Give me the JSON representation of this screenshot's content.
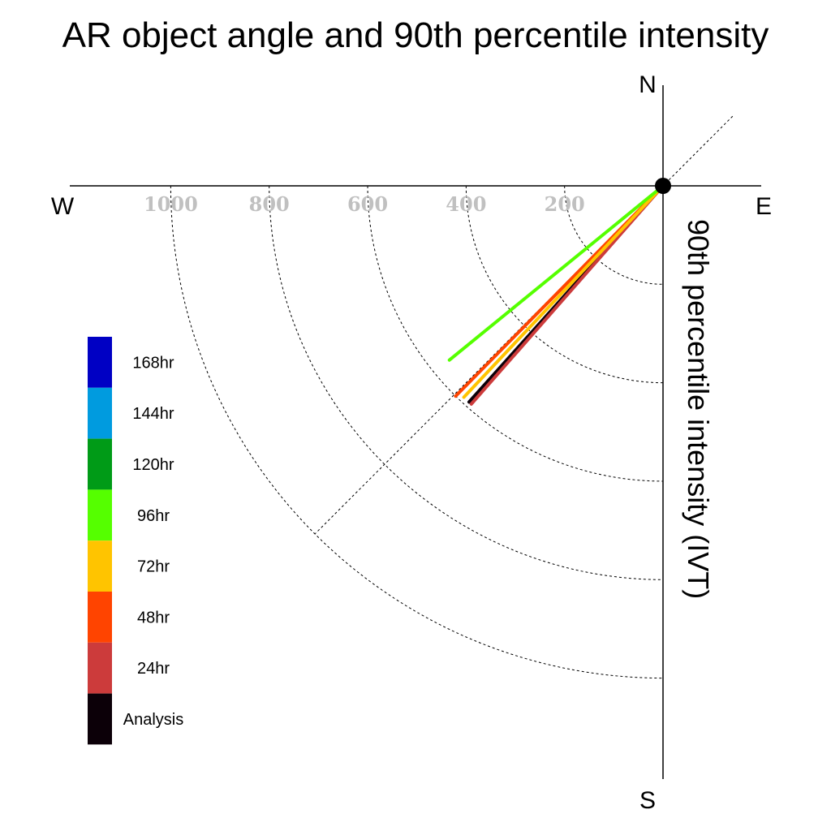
{
  "chart_data": {
    "type": "polar-line",
    "title": "AR object angle and 90th percentile intensity",
    "radial_axis_label": "90th percentile intensity (IVT)",
    "radial_ticks": [
      200,
      400,
      600,
      800,
      1000
    ],
    "radial_max": 1200,
    "compass": {
      "north": "N",
      "south": "S",
      "east": "E",
      "west": "W"
    },
    "reference_angle_deg": 225,
    "series": [
      {
        "name": "Analysis",
        "color": "#0c0008",
        "angle_deg": 221.9,
        "intensity": 590
      },
      {
        "name": "24hr",
        "color": "#cc3b3b",
        "angle_deg": 221.3,
        "intensity": 590
      },
      {
        "name": "48hr",
        "color": "#ff4400",
        "angle_deg": 224.6,
        "intensity": 600
      },
      {
        "name": "72hr",
        "color": "#ffc400",
        "angle_deg": 223.3,
        "intensity": 590
      },
      {
        "name": "96hr",
        "color": "#55ff00",
        "angle_deg": 230.8,
        "intensity": 560
      }
    ],
    "legend": [
      {
        "label": "168hr",
        "color": "#0000c4"
      },
      {
        "label": "144hr",
        "color": "#009bdf"
      },
      {
        "label": "120hr",
        "color": "#009b17"
      },
      {
        "label": "96hr",
        "color": "#55ff00"
      },
      {
        "label": "72hr",
        "color": "#ffc400"
      },
      {
        "label": "48hr",
        "color": "#ff4400"
      },
      {
        "label": "24hr",
        "color": "#cc3b3b"
      },
      {
        "label": "Analysis",
        "color": "#0c0008"
      }
    ]
  }
}
